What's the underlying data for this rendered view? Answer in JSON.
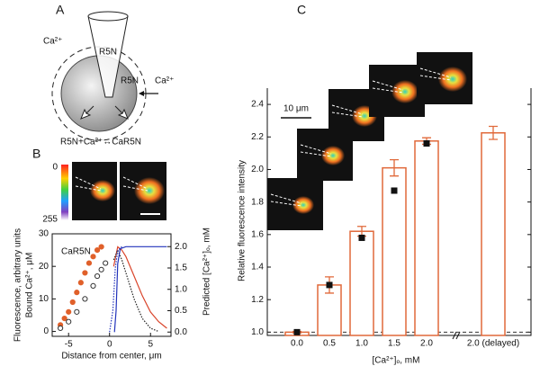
{
  "panel_labels": [
    "A",
    "B",
    "C"
  ],
  "diagram": {
    "outside_ion": "Ca²⁺",
    "pipette_label": "R5N",
    "membrane_label": "R5N",
    "entering_ion": "Ca²⁺",
    "reaction": "R5N+Ca²⁺↔CaR5N"
  },
  "colorbar": {
    "min_label": "0",
    "max_label": "255"
  },
  "image_scale": "10 μm",
  "chart_data": [
    {
      "type": "line",
      "x_label": "Distance from center, μm",
      "y_label": [
        "Fluorescence, arbitrary units",
        "Bound Ca²⁺, μM"
      ],
      "y2_label": "Predicted [Ca²⁺]ₒ, mM",
      "annotation": "CaR5N",
      "xlim": [
        -7,
        7.5
      ],
      "xticks": [
        -5,
        0,
        5
      ],
      "ylim": [
        -1.5,
        30
      ],
      "yticks": [
        0,
        10,
        20,
        30
      ],
      "y2lim": [
        -0.1,
        2.3
      ],
      "y2ticks": [
        {
          "value": 0,
          "label": "0.0"
        },
        0.5,
        {
          "value": 1,
          "label": "1.0"
        },
        1.5,
        {
          "value": 2,
          "label": "2.0"
        }
      ],
      "series": [
        {
          "color": "#e0602a",
          "marker": "filled",
          "x": [
            -6,
            -5.5,
            -5,
            -4.5,
            -4,
            -3.5,
            -3,
            -2.5,
            -2,
            -1.5,
            -1
          ],
          "values": [
            2,
            4,
            6,
            9,
            12,
            15,
            18,
            21,
            23,
            25,
            26
          ]
        },
        {
          "color": "#333333",
          "marker": "open",
          "x": [
            -6,
            -5,
            -4,
            -3,
            -2,
            -1.5,
            -1,
            -0.5
          ],
          "values": [
            1,
            3,
            6,
            10,
            14,
            17,
            19,
            21
          ]
        },
        {
          "color": "#d9442a",
          "style": "solid",
          "x": [
            0.5,
            1,
            1.5,
            2,
            3,
            4,
            5,
            6,
            7
          ],
          "values": [
            20,
            26,
            25,
            23,
            17,
            11,
            6,
            3,
            1
          ]
        },
        {
          "color": "#222222",
          "style": "dotted",
          "x": [
            0.5,
            1,
            1.5,
            2,
            3,
            4,
            5,
            6
          ],
          "values": [
            22,
            25,
            22,
            18,
            10,
            4,
            1,
            0
          ]
        },
        {
          "color": "#2233bb",
          "style": "solid",
          "axis": "y2",
          "x": [
            0.6,
            0.8,
            1.0,
            1.3,
            2,
            4,
            7
          ],
          "values": [
            0,
            0.5,
            1.6,
            1.95,
            2.0,
            2.0,
            2.0
          ]
        },
        {
          "color": "#2233bb",
          "style": "dotted",
          "axis": "y2",
          "x": [
            0,
            0.4,
            0.7,
            1,
            1.5
          ],
          "values": [
            0,
            0.5,
            1.5,
            1.9,
            2.0
          ]
        }
      ]
    },
    {
      "type": "bar",
      "x_label": "[Ca²⁺]ₒ, mM",
      "y_label": "Relative fluorescence intensity",
      "categories": [
        "0.0",
        "0.5",
        "1.0",
        "1.5",
        "2.0",
        "2.0 (delayed)"
      ],
      "values": [
        1.0,
        1.29,
        1.62,
        2.01,
        2.175,
        2.225
      ],
      "errors": [
        0.005,
        0.05,
        0.03,
        0.05,
        0.02,
        0.04
      ],
      "color": "#e0693a",
      "markers": {
        "color": "#111111",
        "values": [
          1.0,
          1.29,
          1.58,
          1.87,
          2.16,
          null
        ]
      },
      "reference_line": 1.0,
      "ylim": [
        0.98,
        2.5
      ],
      "yticks": [
        {
          "value": 1.0,
          "label": "1.0"
        },
        1.2,
        1.4,
        1.6,
        1.8,
        {
          "value": 2.0,
          "label": "2.0"
        },
        2.2,
        2.4
      ]
    }
  ]
}
